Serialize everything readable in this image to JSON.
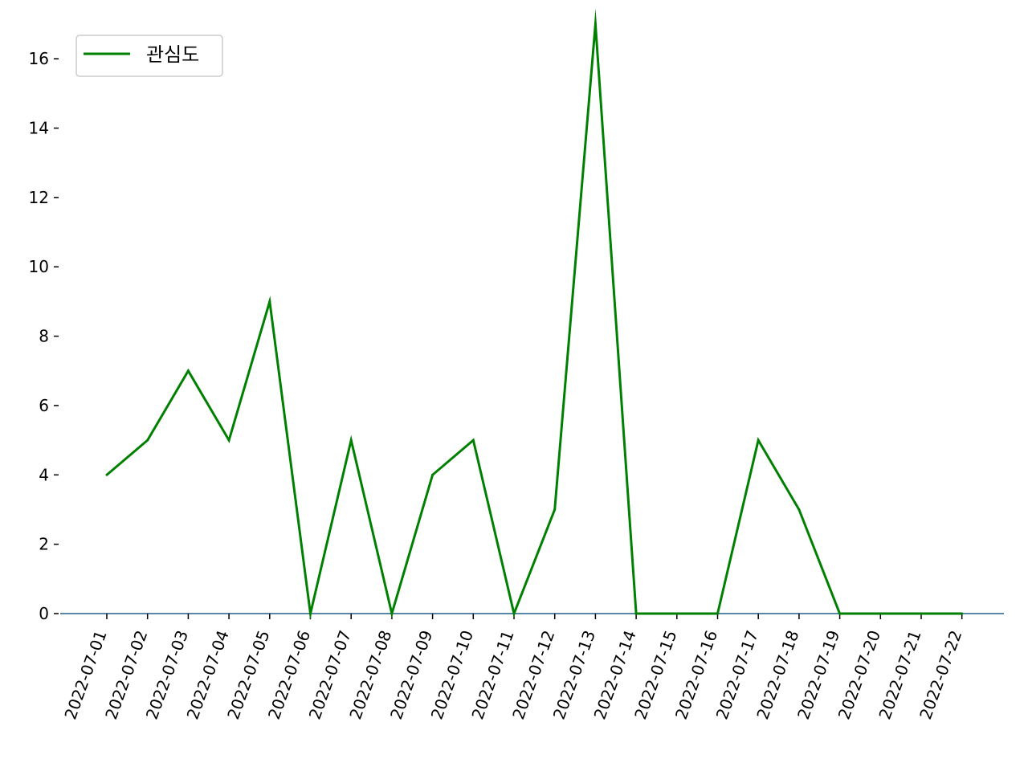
{
  "chart_data": {
    "type": "line",
    "x": [
      "2022-07-01",
      "2022-07-02",
      "2022-07-03",
      "2022-07-04",
      "2022-07-05",
      "2022-07-06",
      "2022-07-07",
      "2022-07-08",
      "2022-07-09",
      "2022-07-10",
      "2022-07-11",
      "2022-07-12",
      "2022-07-13",
      "2022-07-14",
      "2022-07-15",
      "2022-07-16",
      "2022-07-17",
      "2022-07-18",
      "2022-07-19",
      "2022-07-20",
      "2022-07-21",
      "2022-07-22"
    ],
    "series": [
      {
        "name": "관심도",
        "color": "#008000",
        "values": [
          4,
          5,
          7,
          5,
          9,
          0,
          5,
          0,
          4,
          5,
          0,
          3,
          17,
          0,
          0,
          0,
          5,
          3,
          0,
          0,
          0,
          0
        ]
      }
    ],
    "yticks": [
      0,
      2,
      4,
      6,
      8,
      10,
      12,
      14,
      16
    ],
    "ylim": [
      0,
      17
    ],
    "baseline_color": "#1f5f8b",
    "grid": false,
    "legend": "top-left",
    "xtick_rotation": 70
  }
}
